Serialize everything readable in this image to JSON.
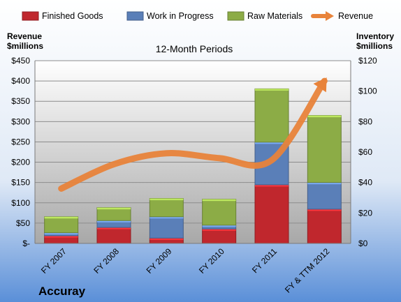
{
  "chart_data": {
    "type": "bar",
    "stacked": true,
    "title": "12-Month Periods",
    "company": "Accuray",
    "categories": [
      "FY 2007",
      "FY 2008",
      "FY 2009",
      "FY 2010",
      "FY 2011",
      "FY & TTM 2012"
    ],
    "series": [
      {
        "name": "Finished Goods",
        "axis": "right",
        "color": "#c0272d",
        "values": [
          5,
          10.5,
          3.5,
          9.5,
          38.5,
          22.5
        ]
      },
      {
        "name": "Work in Progress",
        "axis": "right",
        "color": "#5a7fb8",
        "values": [
          2,
          4.5,
          14,
          2.5,
          28,
          17.5
        ]
      },
      {
        "name": "Raw Materials",
        "axis": "right",
        "color": "#8cac46",
        "values": [
          10.5,
          8.5,
          12,
          17,
          35,
          44
        ]
      }
    ],
    "line_series": {
      "name": "Revenue",
      "axis": "left",
      "color": "#e8833a",
      "values": [
        135,
        195,
        222,
        210,
        205,
        400
      ]
    },
    "legend": {
      "position": "top",
      "items": [
        "Finished Goods",
        "Work in Progress",
        "Raw Materials",
        "Revenue"
      ]
    },
    "ylabel_left": [
      "Revenue",
      "$millions"
    ],
    "ylabel_right": [
      "Inventory",
      "$millions"
    ],
    "ylim_left": [
      0,
      450
    ],
    "ylim_right": [
      0,
      120
    ],
    "yticks_left": [
      "$450",
      "$400",
      "$350",
      "$300",
      "$250",
      "$200",
      "$150",
      "$100",
      "$50",
      "$-"
    ],
    "yticks_right": [
      "$120",
      "$100",
      "$80",
      "$60",
      "$40",
      "$20",
      "$0"
    ],
    "grid": true
  }
}
